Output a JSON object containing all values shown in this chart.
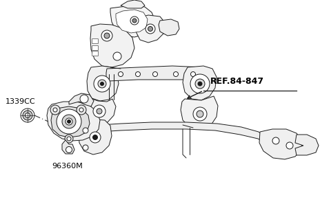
{
  "background_color": "#ffffff",
  "line_color": "#1a1a1a",
  "labels": {
    "part1_id": "1339CC",
    "part2_id": "96360M",
    "ref_id": "REF.84-847"
  },
  "lw": 0.7
}
